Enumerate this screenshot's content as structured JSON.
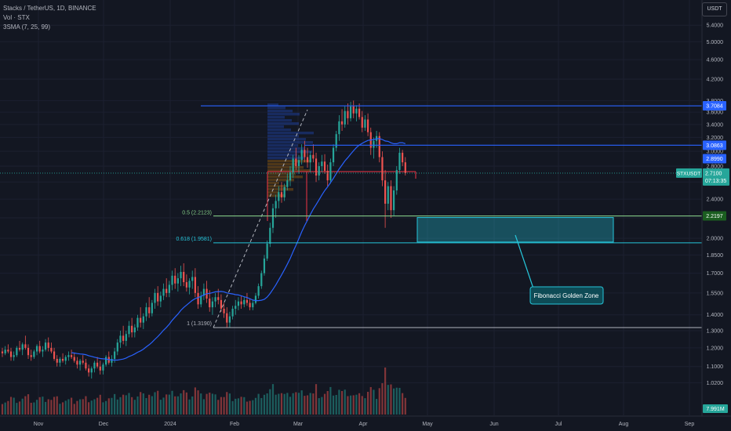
{
  "header": {
    "symbol_line": "Stacks / TetherUS, 1D, BINANCE",
    "volume_line": "Vol · STX",
    "sma_line": "3SMA (7, 25, 99)",
    "currency_button": "USDT"
  },
  "colors": {
    "background": "#131722",
    "up": "#26a69a",
    "down": "#ef5350",
    "sma": "#2962ff",
    "blue_level": "#2962ff",
    "fib_green": "#81c784",
    "teal_zone": "#26c6da",
    "grey_level": "#b2b5be",
    "red_level": "#f23645"
  },
  "chart_data": {
    "type": "candlestick",
    "title": "Stacks / TetherUS, 1D, BINANCE",
    "y_scale": "log",
    "ylim": [
      0.96,
      5.75
    ],
    "x_tick_labels": [
      "Nov",
      "Dec",
      "2024",
      "Feb",
      "Mar",
      "Apr",
      "May",
      "Jun",
      "Jul",
      "Aug",
      "Sep"
    ],
    "y_tick_labels": [
      1.02,
      1.1,
      1.2,
      1.3,
      1.4,
      1.55,
      1.7,
      1.85,
      2.0,
      2.2,
      2.4,
      2.6,
      2.8,
      3.0,
      3.2,
      3.4,
      3.6,
      3.8,
      4.2,
      4.6,
      5.0,
      5.4
    ],
    "candles_ohlc": [
      [
        1.18,
        1.2,
        1.15,
        1.17
      ],
      [
        1.17,
        1.21,
        1.16,
        1.19
      ],
      [
        1.19,
        1.22,
        1.17,
        1.18
      ],
      [
        1.18,
        1.2,
        1.13,
        1.15
      ],
      [
        1.15,
        1.18,
        1.13,
        1.16
      ],
      [
        1.16,
        1.21,
        1.15,
        1.2
      ],
      [
        1.2,
        1.24,
        1.18,
        1.19
      ],
      [
        1.19,
        1.23,
        1.16,
        1.22
      ],
      [
        1.22,
        1.27,
        1.19,
        1.2
      ],
      [
        1.2,
        1.22,
        1.14,
        1.16
      ],
      [
        1.16,
        1.19,
        1.13,
        1.15
      ],
      [
        1.15,
        1.19,
        1.14,
        1.18
      ],
      [
        1.18,
        1.22,
        1.16,
        1.21
      ],
      [
        1.21,
        1.24,
        1.17,
        1.18
      ],
      [
        1.18,
        1.21,
        1.15,
        1.19
      ],
      [
        1.19,
        1.25,
        1.18,
        1.23
      ],
      [
        1.23,
        1.26,
        1.18,
        1.2
      ],
      [
        1.2,
        1.23,
        1.17,
        1.18
      ],
      [
        1.18,
        1.2,
        1.13,
        1.14
      ],
      [
        1.14,
        1.16,
        1.1,
        1.12
      ],
      [
        1.12,
        1.15,
        1.1,
        1.14
      ],
      [
        1.14,
        1.17,
        1.12,
        1.13
      ],
      [
        1.13,
        1.16,
        1.11,
        1.15
      ],
      [
        1.15,
        1.18,
        1.13,
        1.16
      ],
      [
        1.16,
        1.19,
        1.14,
        1.15
      ],
      [
        1.15,
        1.17,
        1.12,
        1.13
      ],
      [
        1.13,
        1.15,
        1.09,
        1.11
      ],
      [
        1.11,
        1.14,
        1.08,
        1.13
      ],
      [
        1.13,
        1.16,
        1.11,
        1.12
      ],
      [
        1.12,
        1.14,
        1.08,
        1.09
      ],
      [
        1.09,
        1.11,
        1.05,
        1.07
      ],
      [
        1.07,
        1.1,
        1.04,
        1.09
      ],
      [
        1.09,
        1.13,
        1.07,
        1.12
      ],
      [
        1.12,
        1.15,
        1.09,
        1.1
      ],
      [
        1.1,
        1.13,
        1.06,
        1.08
      ],
      [
        1.08,
        1.12,
        1.06,
        1.11
      ],
      [
        1.11,
        1.16,
        1.1,
        1.15
      ],
      [
        1.15,
        1.18,
        1.11,
        1.12
      ],
      [
        1.12,
        1.16,
        1.1,
        1.14
      ],
      [
        1.14,
        1.2,
        1.12,
        1.18
      ],
      [
        1.18,
        1.25,
        1.16,
        1.23
      ],
      [
        1.23,
        1.3,
        1.2,
        1.27
      ],
      [
        1.27,
        1.33,
        1.22,
        1.24
      ],
      [
        1.24,
        1.3,
        1.21,
        1.28
      ],
      [
        1.28,
        1.36,
        1.26,
        1.33
      ],
      [
        1.33,
        1.38,
        1.26,
        1.29
      ],
      [
        1.29,
        1.34,
        1.26,
        1.32
      ],
      [
        1.32,
        1.4,
        1.3,
        1.38
      ],
      [
        1.38,
        1.45,
        1.32,
        1.35
      ],
      [
        1.35,
        1.41,
        1.31,
        1.39
      ],
      [
        1.39,
        1.48,
        1.36,
        1.45
      ],
      [
        1.45,
        1.52,
        1.38,
        1.41
      ],
      [
        1.41,
        1.5,
        1.39,
        1.48
      ],
      [
        1.48,
        1.58,
        1.44,
        1.55
      ],
      [
        1.55,
        1.6,
        1.46,
        1.49
      ],
      [
        1.49,
        1.56,
        1.45,
        1.53
      ],
      [
        1.53,
        1.62,
        1.5,
        1.58
      ],
      [
        1.58,
        1.66,
        1.52,
        1.55
      ],
      [
        1.55,
        1.64,
        1.52,
        1.61
      ],
      [
        1.61,
        1.72,
        1.57,
        1.68
      ],
      [
        1.68,
        1.74,
        1.58,
        1.62
      ],
      [
        1.62,
        1.7,
        1.56,
        1.66
      ],
      [
        1.66,
        1.76,
        1.6,
        1.71
      ],
      [
        1.71,
        1.78,
        1.6,
        1.63
      ],
      [
        1.63,
        1.69,
        1.56,
        1.59
      ],
      [
        1.59,
        1.66,
        1.54,
        1.64
      ],
      [
        1.64,
        1.72,
        1.58,
        1.67
      ],
      [
        1.67,
        1.74,
        1.52,
        1.55
      ],
      [
        1.55,
        1.6,
        1.44,
        1.47
      ],
      [
        1.47,
        1.56,
        1.45,
        1.53
      ],
      [
        1.53,
        1.62,
        1.5,
        1.58
      ],
      [
        1.58,
        1.64,
        1.48,
        1.51
      ],
      [
        1.51,
        1.57,
        1.42,
        1.45
      ],
      [
        1.45,
        1.52,
        1.4,
        1.49
      ],
      [
        1.49,
        1.55,
        1.45,
        1.52
      ],
      [
        1.52,
        1.58,
        1.47,
        1.5
      ],
      [
        1.5,
        1.54,
        1.42,
        1.44
      ],
      [
        1.44,
        1.48,
        1.38,
        1.41
      ],
      [
        1.41,
        1.45,
        1.32,
        1.35
      ],
      [
        1.35,
        1.42,
        1.32,
        1.39
      ],
      [
        1.39,
        1.46,
        1.37,
        1.44
      ],
      [
        1.44,
        1.5,
        1.4,
        1.46
      ],
      [
        1.46,
        1.52,
        1.43,
        1.49
      ],
      [
        1.49,
        1.53,
        1.44,
        1.47
      ],
      [
        1.47,
        1.52,
        1.45,
        1.5
      ],
      [
        1.5,
        1.55,
        1.46,
        1.48
      ],
      [
        1.48,
        1.51,
        1.43,
        1.45
      ],
      [
        1.45,
        1.5,
        1.43,
        1.48
      ],
      [
        1.48,
        1.55,
        1.47,
        1.53
      ],
      [
        1.53,
        1.62,
        1.51,
        1.6
      ],
      [
        1.6,
        1.72,
        1.58,
        1.7
      ],
      [
        1.7,
        1.85,
        1.68,
        1.82
      ],
      [
        1.82,
        1.98,
        1.8,
        1.95
      ],
      [
        1.95,
        2.15,
        1.92,
        2.1
      ],
      [
        2.1,
        2.35,
        2.05,
        2.3
      ],
      [
        2.3,
        2.45,
        2.2,
        2.38
      ],
      [
        2.38,
        2.55,
        2.3,
        2.48
      ],
      [
        2.48,
        2.6,
        2.36,
        2.42
      ],
      [
        2.42,
        2.58,
        2.38,
        2.54
      ],
      [
        2.54,
        2.7,
        2.5,
        2.62
      ],
      [
        2.62,
        2.8,
        2.55,
        2.72
      ],
      [
        2.72,
        2.95,
        2.65,
        2.9
      ],
      [
        2.9,
        3.05,
        2.75,
        2.8
      ],
      [
        2.8,
        2.95,
        2.7,
        2.88
      ],
      [
        2.88,
        3.1,
        2.82,
        3.02
      ],
      [
        3.02,
        3.15,
        2.85,
        2.92
      ],
      [
        2.92,
        3.05,
        2.78,
        2.85
      ],
      [
        2.85,
        3.0,
        2.72,
        2.95
      ],
      [
        2.95,
        3.1,
        2.85,
        2.9
      ],
      [
        2.9,
        2.98,
        2.6,
        2.68
      ],
      [
        2.68,
        2.85,
        2.62,
        2.8
      ],
      [
        2.8,
        2.95,
        2.72,
        2.86
      ],
      [
        2.86,
        2.96,
        2.7,
        2.74
      ],
      [
        2.74,
        2.82,
        2.55,
        2.62
      ],
      [
        2.62,
        2.9,
        2.58,
        2.85
      ],
      [
        2.85,
        3.1,
        2.8,
        3.05
      ],
      [
        3.05,
        3.3,
        3.0,
        3.25
      ],
      [
        3.25,
        3.55,
        3.15,
        3.45
      ],
      [
        3.45,
        3.65,
        3.3,
        3.4
      ],
      [
        3.4,
        3.7,
        3.35,
        3.62
      ],
      [
        3.62,
        3.75,
        3.4,
        3.5
      ],
      [
        3.5,
        3.78,
        3.45,
        3.7
      ],
      [
        3.7,
        3.8,
        3.5,
        3.58
      ],
      [
        3.58,
        3.72,
        3.45,
        3.66
      ],
      [
        3.66,
        3.75,
        3.48,
        3.52
      ],
      [
        3.52,
        3.62,
        3.28,
        3.35
      ],
      [
        3.35,
        3.55,
        3.3,
        3.48
      ],
      [
        3.48,
        3.58,
        3.22,
        3.28
      ],
      [
        3.28,
        3.35,
        2.95,
        3.05
      ],
      [
        3.05,
        3.2,
        2.9,
        3.15
      ],
      [
        3.15,
        3.3,
        3.05,
        3.22
      ],
      [
        3.22,
        3.28,
        2.85,
        2.92
      ],
      [
        2.92,
        3.0,
        2.55,
        2.62
      ],
      [
        2.62,
        2.75,
        2.1,
        2.35
      ],
      [
        2.35,
        2.6,
        2.28,
        2.55
      ],
      [
        2.55,
        2.62,
        2.2,
        2.28
      ],
      [
        2.28,
        2.55,
        2.22,
        2.5
      ],
      [
        2.5,
        2.8,
        2.45,
        2.75
      ],
      [
        2.75,
        3.05,
        2.7,
        2.98
      ],
      [
        2.98,
        3.02,
        2.8,
        2.85
      ],
      [
        2.85,
        2.92,
        2.68,
        2.71
      ]
    ],
    "volume_label": "7.991M",
    "sma_label": "3SMA (7, 25, 99)",
    "levels": [
      {
        "value": 3.7084,
        "label": "3.7084",
        "color": "blue"
      },
      {
        "value": 3.0863,
        "label": "3.0863",
        "color": "blue"
      },
      {
        "value": 2.899,
        "label": "2.8990",
        "color": "blue"
      },
      {
        "value": 2.2197,
        "label": "2.2197",
        "color": "green"
      }
    ],
    "fib_levels": [
      {
        "label": "0.5 (2.2123)",
        "value": 2.2123
      },
      {
        "label": "0.618 (1.9581)",
        "value": 1.9581
      },
      {
        "label": "1 (1.3190)",
        "value": 1.319
      }
    ],
    "current_price": {
      "symbol": "STXUSDT",
      "price": "2.7100",
      "countdown": "07:13:35",
      "value": 2.71
    },
    "annotation": "Fibonacci Golden Zone",
    "zone": {
      "top": 2.2197,
      "bottom": 1.9581
    }
  }
}
